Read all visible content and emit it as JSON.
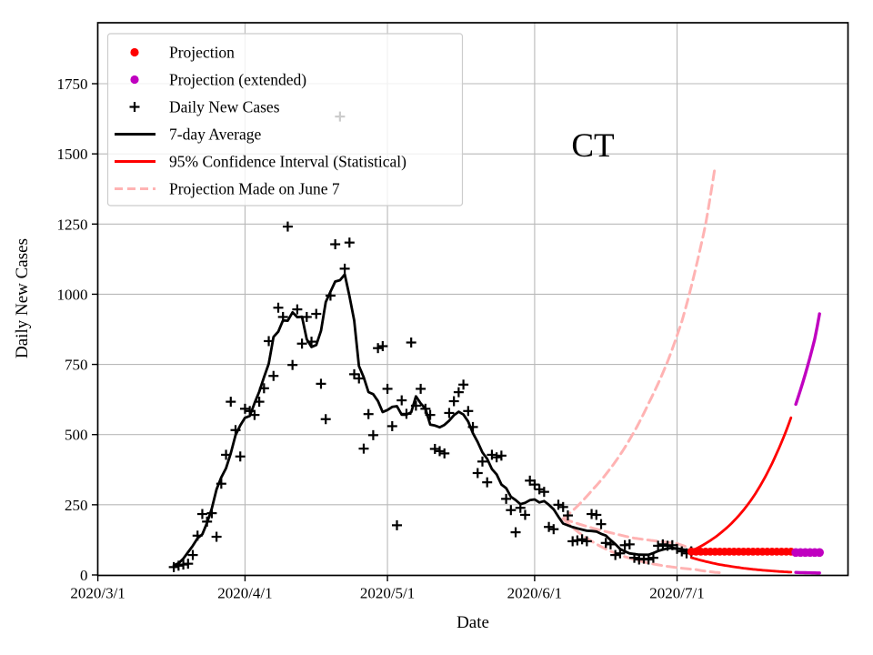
{
  "chart_data": {
    "type": "line",
    "title": "CT",
    "xlabel": "Date",
    "ylabel": "Daily New Cases",
    "x_axis": {
      "epoch": "2020-03-01",
      "tick_labels": [
        "2020/3/1",
        "2020/4/1",
        "2020/5/1",
        "2020/6/1",
        "2020/7/1"
      ],
      "tick_days": [
        0,
        31,
        61,
        92,
        122
      ],
      "range_days": [
        0,
        158
      ]
    },
    "y_axis": {
      "tick_labels": [
        "0",
        "250",
        "500",
        "750",
        "1000",
        "1250",
        "1500",
        "1750"
      ],
      "tick_values": [
        0,
        250,
        500,
        750,
        1000,
        1250,
        1500,
        1750
      ],
      "range": [
        0,
        1973
      ]
    },
    "grid": true,
    "legend": {
      "position": "upper left",
      "frame_opacity": 0.8,
      "items": [
        {
          "marker": "dot",
          "color": "#ff0000",
          "label": "Projection"
        },
        {
          "marker": "dot",
          "color": "#c000c0",
          "label": "Projection (extended)"
        },
        {
          "marker": "plus",
          "color": "#000000",
          "label": "Daily New Cases"
        },
        {
          "marker": "line",
          "color": "#000000",
          "label": "7-day Average"
        },
        {
          "marker": "line",
          "color": "#ff0000",
          "label": "95% Confidence Interval (Statistical)"
        },
        {
          "marker": "dashed",
          "color": "#ffb3b3",
          "label": "Projection Made on June 7"
        }
      ]
    },
    "series": {
      "daily_new_cases": {
        "label": "Daily New Cases",
        "marker": "plus",
        "color": "#000000",
        "start_date": "2020-03-17",
        "start_day": 16,
        "values": [
          28,
          33,
          37,
          40,
          71,
          140,
          217,
          190,
          220,
          136,
          325,
          428,
          617,
          516,
          422,
          592,
          584,
          570,
          617,
          665,
          833,
          709,
          952,
          919,
          1241,
          748,
          946,
          824,
          919,
          831,
          930,
          681,
          555,
          995,
          1178,
          1633,
          1091,
          1184,
          715,
          700,
          450,
          573,
          498,
          808,
          815,
          663,
          530,
          177,
          622,
          574,
          828,
          603,
          663,
          592,
          570,
          449,
          441,
          433,
          577,
          619,
          651,
          678,
          584,
          527,
          363,
          404,
          330,
          428,
          419,
          425,
          271,
          231,
          152,
          239,
          214,
          336,
          322,
          305,
          296,
          171,
          163,
          250,
          242,
          212,
          120,
          123,
          127,
          120,
          217,
          214,
          181,
          114,
          109,
          71,
          77,
          106,
          109,
          61,
          55,
          58,
          55,
          61,
          104,
          109,
          104,
          106,
          93,
          84,
          77,
          84
        ]
      },
      "seven_day_average": {
        "label": "7-day Average",
        "color": "#000000",
        "window": 7,
        "centered": true,
        "computed_from": "daily_new_cases"
      },
      "projection": {
        "label": "Projection",
        "marker": "dot",
        "color": "#ff0000",
        "start_date": "2020-07-04",
        "start_day": 125,
        "values": [
          83,
          83,
          83,
          83,
          83,
          83,
          83,
          83,
          83,
          83,
          83,
          83,
          83,
          83,
          83,
          83,
          83,
          83,
          83,
          83,
          83,
          83
        ]
      },
      "projection_extended": {
        "label": "Projection (extended)",
        "marker": "dot",
        "color": "#c000c0",
        "start_date": "2020-07-26",
        "start_day": 147,
        "values": [
          80,
          80,
          80,
          80,
          80,
          80
        ]
      },
      "ci_upper": {
        "label": "95% Confidence Interval (Statistical)",
        "color": "#ff0000",
        "points": [
          [
            125,
            85
          ],
          [
            128,
            112
          ],
          [
            131,
            147
          ],
          [
            134,
            193
          ],
          [
            137,
            253
          ],
          [
            140,
            332
          ],
          [
            143,
            434
          ],
          [
            146,
            560
          ]
        ]
      },
      "ci_lower": {
        "label": "95% Confidence Interval (Statistical)",
        "color": "#ff0000",
        "points": [
          [
            125,
            62
          ],
          [
            128,
            48
          ],
          [
            131,
            37
          ],
          [
            134,
            29
          ],
          [
            137,
            22
          ],
          [
            140,
            17
          ],
          [
            143,
            13
          ],
          [
            146,
            10
          ]
        ]
      },
      "ci_upper_extended": {
        "color": "#c000c0",
        "points": [
          [
            147,
            608
          ],
          [
            149,
            715
          ],
          [
            151,
            840
          ],
          [
            152,
            930
          ]
        ]
      },
      "ci_lower_extended": {
        "color": "#c000c0",
        "points": [
          [
            147,
            9
          ],
          [
            152,
            7
          ]
        ]
      },
      "june7_projection_upper": {
        "label": "Projection Made on June 7",
        "color": "#ffb3b3",
        "dashed": true,
        "points": [
          [
            98,
            200
          ],
          [
            104,
            300
          ],
          [
            110,
            428
          ],
          [
            116,
            611
          ],
          [
            120,
            760
          ],
          [
            123,
            903
          ],
          [
            128,
            1249
          ],
          [
            130,
            1454
          ]
        ]
      },
      "june7_projection_mid": {
        "label": "Projection Made on June 7",
        "color": "#ffb3b3",
        "dashed": true,
        "points": [
          [
            98,
            200
          ],
          [
            104,
            168
          ],
          [
            113,
            131
          ],
          [
            122,
            112
          ],
          [
            126,
            90
          ]
        ]
      },
      "june7_projection_lower": {
        "label": "Projection Made on June 7",
        "color": "#ffb3b3",
        "dashed": true,
        "points": [
          [
            98,
            200
          ],
          [
            103,
            131
          ],
          [
            110,
            71
          ],
          [
            117,
            39
          ],
          [
            122,
            26
          ],
          [
            126,
            19
          ],
          [
            131,
            8
          ]
        ]
      }
    },
    "colors": {
      "projection": "#ff0000",
      "projection_extended": "#c000c0",
      "daily_new_cases": "#000000",
      "seven_day_average": "#000000",
      "confidence_interval": "#ff0000",
      "june7_projection": "#ffb3b3",
      "grid": "#b9b9b9"
    }
  }
}
